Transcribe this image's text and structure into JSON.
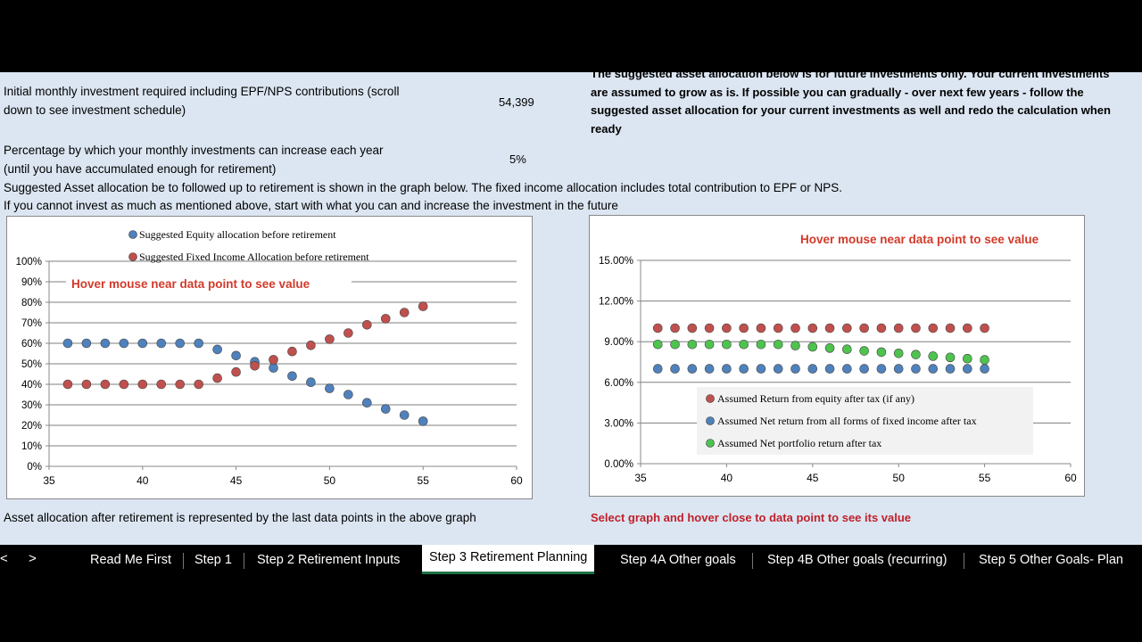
{
  "sheet": {
    "rows": {
      "monthly_label_1": "Initial monthly investment required including EPF/NPS contributions (scroll",
      "monthly_label_2": "down to see investment schedule)",
      "monthly_value": "54,399",
      "increase_label_1": "Percentage by which your monthly investments can increase each year",
      "increase_label_2": "(until you have accumulated enough for retirement)",
      "increase_value": "5%",
      "suggested_line": "Suggested Asset allocation be to followed up to retirement is shown in the graph below. The fixed income allocation includes total contribution to EPF or NPS.",
      "invest_line": "If you cannot invest as much as mentioned above, start with what you can and increase the investment in the future",
      "after_line": "Asset allocation after retirement is represented by the last data points in the above graph"
    },
    "right_note": {
      "line0": "The suggested asset allocation below is for future investments only. Your current investments",
      "line1": "are assumed to grow as is. If possible you can gradually - over next few years - follow the",
      "line2": "suggested asset allocation for your current investments as well and redo the calculation when",
      "line3": "ready"
    },
    "select_hint": "Select graph and hover close to data point to see its value"
  },
  "chart_data": [
    {
      "type": "scatter",
      "annotation": "Hover mouse near data point to see value",
      "xlim": [
        35,
        60
      ],
      "ylim": [
        0,
        100
      ],
      "x_ticks": [
        "35",
        "40",
        "45",
        "50",
        "55",
        "60"
      ],
      "y_ticks": [
        "0%",
        "10%",
        "20%",
        "30%",
        "40%",
        "50%",
        "60%",
        "70%",
        "80%",
        "90%",
        "100%"
      ],
      "legend_position": "top",
      "x": [
        36,
        37,
        38,
        39,
        40,
        41,
        42,
        43,
        44,
        45,
        46,
        47,
        48,
        49,
        50,
        51,
        52,
        53,
        54,
        55
      ],
      "series": [
        {
          "name": "Suggested Equity allocation before retirement",
          "color": "#4f81bd",
          "values": [
            60,
            60,
            60,
            60,
            60,
            60,
            60,
            60,
            57,
            54,
            51,
            48,
            44,
            41,
            38,
            35,
            31,
            28,
            25,
            22
          ]
        },
        {
          "name": "Suggested Fixed Income Allocation before retirement",
          "color": "#c0504d",
          "values": [
            40,
            40,
            40,
            40,
            40,
            40,
            40,
            40,
            43,
            46,
            49,
            52,
            56,
            59,
            62,
            65,
            69,
            72,
            75,
            78
          ]
        }
      ]
    },
    {
      "type": "scatter",
      "annotation": "Hover mouse near data point to see value",
      "xlim": [
        35,
        60
      ],
      "ylim": [
        0,
        15
      ],
      "x_ticks": [
        "35",
        "40",
        "45",
        "50",
        "55",
        "60"
      ],
      "y_ticks": [
        "0.00%",
        "3.00%",
        "6.00%",
        "9.00%",
        "12.00%",
        "15.00%"
      ],
      "legend_position": "bottom-right",
      "x": [
        36,
        37,
        38,
        39,
        40,
        41,
        42,
        43,
        44,
        45,
        46,
        47,
        48,
        49,
        50,
        51,
        52,
        53,
        54,
        55
      ],
      "series": [
        {
          "name": "Assumed Return from equity after tax (if any)",
          "color": "#c0504d",
          "values": [
            10,
            10,
            10,
            10,
            10,
            10,
            10,
            10,
            10,
            10,
            10,
            10,
            10,
            10,
            10,
            10,
            10,
            10,
            10,
            10
          ]
        },
        {
          "name": "Assumed Net return from all forms of fixed income after tax",
          "color": "#4f81bd",
          "values": [
            7,
            7,
            7,
            7,
            7,
            7,
            7,
            7,
            7,
            7,
            7,
            7,
            7,
            7,
            7,
            7,
            7,
            7,
            7,
            7
          ]
        },
        {
          "name": "Assumed Net portfolio return after tax",
          "color": "#4ec34e",
          "values": [
            8.8,
            8.8,
            8.8,
            8.8,
            8.8,
            8.8,
            8.8,
            8.8,
            8.71,
            8.62,
            8.53,
            8.44,
            8.32,
            8.23,
            8.14,
            8.05,
            7.93,
            7.84,
            7.75,
            7.66
          ]
        }
      ]
    }
  ],
  "tabs": [
    "Read Me First",
    "Step 1",
    "Step 2 Retirement Inputs",
    "Step 3 Retirement Planning",
    "Step 4A Other goals",
    "Step 4B Other goals (recurring)",
    "Step 5 Other Goals- Plan"
  ],
  "nav": {
    "prev": "<",
    "next": ">"
  }
}
